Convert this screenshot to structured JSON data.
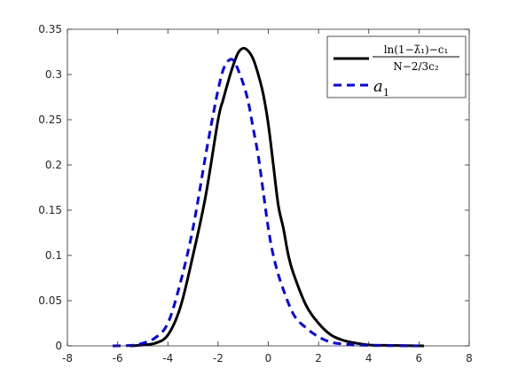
{
  "chart_data": {
    "type": "line",
    "xlim": [
      -8,
      8
    ],
    "ylim": [
      0,
      0.35
    ],
    "xticks": [
      -8,
      -6,
      -4,
      -2,
      0,
      2,
      4,
      6,
      8
    ],
    "yticks": [
      0,
      0.05,
      0.1,
      0.15,
      0.2,
      0.25,
      0.3,
      0.35
    ],
    "xtick_labels": [
      "-8",
      "-6",
      "-4",
      "-2",
      "0",
      "2",
      "4",
      "6",
      "8"
    ],
    "ytick_labels": [
      "0",
      "0.05",
      "0.1",
      "0.15",
      "0.2",
      "0.25",
      "0.3",
      "0.35"
    ],
    "grid": false,
    "legend_position": "top-right",
    "series": [
      {
        "name": "(ln(1−λ̃₁)−c₁)/(N^(−2/3) c₂)",
        "legend": {
          "numerator": "ln(1−λ̃₁)−c₁",
          "denominator": "N−2/3c₂"
        },
        "color": "#000000",
        "style": "solid",
        "x": [
          -5.5,
          -5.0,
          -4.5,
          -4.0,
          -3.5,
          -3.0,
          -2.5,
          -2.0,
          -1.8,
          -1.6,
          -1.4,
          -1.2,
          -1.0,
          -0.8,
          -0.6,
          -0.4,
          -0.2,
          0.0,
          0.2,
          0.4,
          0.6,
          0.8,
          1.0,
          1.5,
          2.0,
          2.5,
          3.0,
          3.5,
          4.0,
          5.0,
          6.2
        ],
        "y": [
          0.0,
          0.001,
          0.003,
          0.012,
          0.043,
          0.1,
          0.165,
          0.25,
          0.272,
          0.292,
          0.31,
          0.324,
          0.329,
          0.326,
          0.317,
          0.3,
          0.278,
          0.245,
          0.2,
          0.155,
          0.13,
          0.1,
          0.08,
          0.045,
          0.025,
          0.012,
          0.006,
          0.003,
          0.001,
          0.0005,
          0.0
        ]
      },
      {
        "name": "a₁",
        "legend": {
          "label": "a",
          "subscript": "1"
        },
        "color": "#0000ff",
        "style": "dashed",
        "x": [
          -6.2,
          -5.5,
          -5.0,
          -4.5,
          -4.0,
          -3.5,
          -3.0,
          -2.5,
          -2.2,
          -2.0,
          -1.8,
          -1.6,
          -1.4,
          -1.2,
          -1.0,
          -0.8,
          -0.6,
          -0.4,
          -0.2,
          0.0,
          0.2,
          0.5,
          1.0,
          1.5,
          2.0,
          2.5,
          3.0,
          3.5,
          4.0,
          5.0,
          6.0
        ],
        "y": [
          0.0,
          0.0005,
          0.003,
          0.009,
          0.025,
          0.07,
          0.13,
          0.21,
          0.255,
          0.283,
          0.305,
          0.315,
          0.316,
          0.305,
          0.29,
          0.27,
          0.24,
          0.21,
          0.17,
          0.13,
          0.1,
          0.07,
          0.035,
          0.02,
          0.01,
          0.004,
          0.002,
          0.001,
          0.0005,
          0.0002,
          0.0
        ]
      }
    ]
  }
}
